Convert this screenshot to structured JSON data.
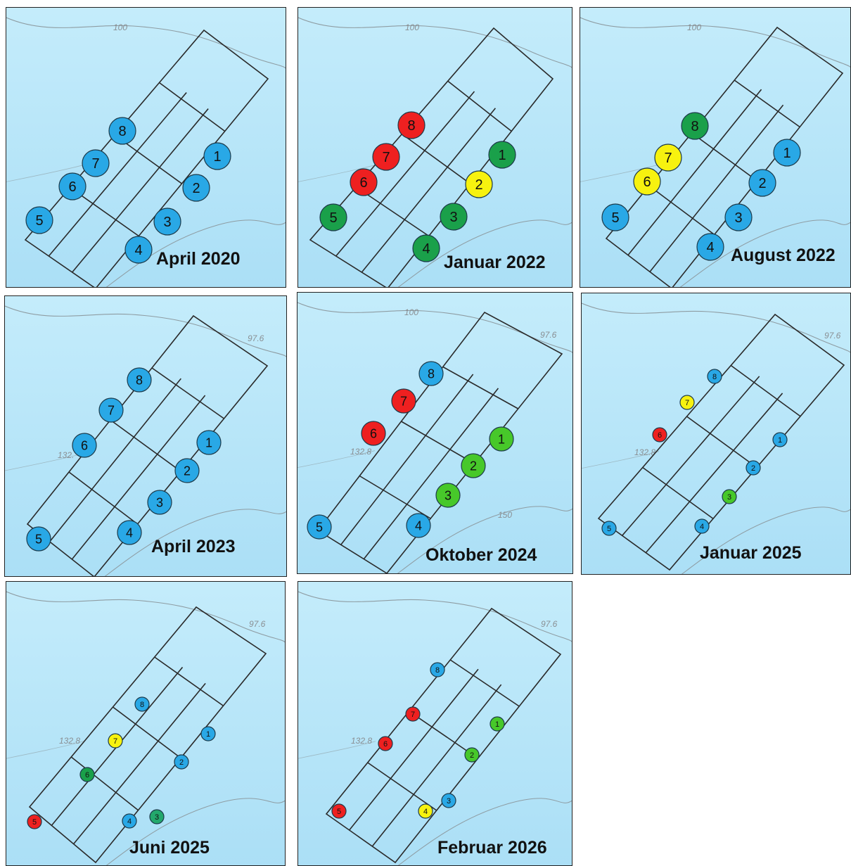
{
  "colors": {
    "blue": "#29a8e6",
    "red": "#ee2020",
    "green": "#1aa04a",
    "lightgreen": "#47c82a",
    "yellow": "#f7f20f",
    "tealgreen": "#23a86c",
    "water_light": "#c4ecfb",
    "water": "#abdff6",
    "grid": "#2a2a2a",
    "contour": "#8e9ca2"
  },
  "panels": [
    {
      "title": "April 2020",
      "contours": [
        "100"
      ],
      "markers": [
        {
          "label": "1",
          "color": "blue"
        },
        {
          "label": "2",
          "color": "blue"
        },
        {
          "label": "3",
          "color": "blue"
        },
        {
          "label": "4",
          "color": "blue"
        },
        {
          "label": "5",
          "color": "blue"
        },
        {
          "label": "6",
          "color": "blue"
        },
        {
          "label": "7",
          "color": "blue"
        },
        {
          "label": "8",
          "color": "blue"
        }
      ]
    },
    {
      "title": "Januar 2022",
      "contours": [
        "100"
      ],
      "markers": [
        {
          "label": "1",
          "color": "green"
        },
        {
          "label": "2",
          "color": "yellow"
        },
        {
          "label": "3",
          "color": "green"
        },
        {
          "label": "4",
          "color": "green"
        },
        {
          "label": "5",
          "color": "green"
        },
        {
          "label": "6",
          "color": "red"
        },
        {
          "label": "7",
          "color": "red"
        },
        {
          "label": "8",
          "color": "red"
        }
      ]
    },
    {
      "title": "August 2022",
      "contours": [
        "100"
      ],
      "markers": [
        {
          "label": "1",
          "color": "blue"
        },
        {
          "label": "2",
          "color": "blue"
        },
        {
          "label": "3",
          "color": "blue"
        },
        {
          "label": "4",
          "color": "blue"
        },
        {
          "label": "5",
          "color": "blue"
        },
        {
          "label": "6",
          "color": "yellow"
        },
        {
          "label": "7",
          "color": "yellow"
        },
        {
          "label": "8",
          "color": "green"
        }
      ]
    },
    {
      "title": "April 2023",
      "contours": [
        "97.6",
        "132."
      ],
      "markers": [
        {
          "label": "1",
          "color": "blue"
        },
        {
          "label": "2",
          "color": "blue"
        },
        {
          "label": "3",
          "color": "blue"
        },
        {
          "label": "4",
          "color": "blue"
        },
        {
          "label": "5",
          "color": "blue"
        },
        {
          "label": "6",
          "color": "blue"
        },
        {
          "label": "7",
          "color": "blue"
        },
        {
          "label": "8",
          "color": "blue"
        }
      ]
    },
    {
      "title": "Oktober 2024",
      "contours": [
        "100",
        "97.6",
        "132.8",
        "150"
      ],
      "markers": [
        {
          "label": "1",
          "color": "lightgreen"
        },
        {
          "label": "2",
          "color": "lightgreen"
        },
        {
          "label": "3",
          "color": "lightgreen"
        },
        {
          "label": "4",
          "color": "blue"
        },
        {
          "label": "5",
          "color": "blue"
        },
        {
          "label": "6",
          "color": "red"
        },
        {
          "label": "7",
          "color": "red"
        },
        {
          "label": "8",
          "color": "blue"
        }
      ]
    },
    {
      "title": "Januar 2025",
      "contours": [
        "97.6",
        "132.8"
      ],
      "markers": [
        {
          "label": "1",
          "color": "blue"
        },
        {
          "label": "2",
          "color": "blue"
        },
        {
          "label": "3",
          "color": "lightgreen"
        },
        {
          "label": "4",
          "color": "blue"
        },
        {
          "label": "5",
          "color": "blue"
        },
        {
          "label": "6",
          "color": "red"
        },
        {
          "label": "7",
          "color": "yellow"
        },
        {
          "label": "8",
          "color": "blue"
        }
      ]
    },
    {
      "title": "Juni 2025",
      "contours": [
        "97.6",
        "132.8"
      ],
      "markers": [
        {
          "label": "1",
          "color": "blue"
        },
        {
          "label": "2",
          "color": "blue"
        },
        {
          "label": "3",
          "color": "tealgreen"
        },
        {
          "label": "4",
          "color": "blue"
        },
        {
          "label": "5",
          "color": "red"
        },
        {
          "label": "6",
          "color": "green"
        },
        {
          "label": "7",
          "color": "yellow"
        },
        {
          "label": "8",
          "color": "blue"
        }
      ]
    },
    {
      "title": "Februar 2026",
      "contours": [
        "97.6",
        "132.8"
      ],
      "markers": [
        {
          "label": "1",
          "color": "lightgreen"
        },
        {
          "label": "2",
          "color": "lightgreen"
        },
        {
          "label": "3",
          "color": "blue"
        },
        {
          "label": "4",
          "color": "yellow"
        },
        {
          "label": "5",
          "color": "red"
        },
        {
          "label": "6",
          "color": "red"
        },
        {
          "label": "7",
          "color": "red"
        },
        {
          "label": "8",
          "color": "blue"
        }
      ]
    }
  ]
}
